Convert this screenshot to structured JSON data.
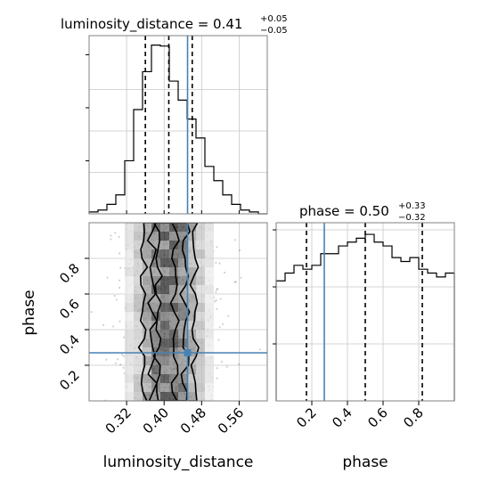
{
  "chart_data": {
    "type": "corner",
    "parameters": [
      "luminosity_distance",
      "phase"
    ],
    "colors": {
      "truth": "#4682b4",
      "histogram": "#000000",
      "quantile": "#000000",
      "grid": "#c8c8c8"
    },
    "panels": [
      {
        "id": "luminosity_distance_marginal",
        "type": "histogram",
        "title": {
          "main": "luminosity_distance = 0.41",
          "plus": "+0.05",
          "minus": "−0.05"
        },
        "xlim": [
          0.24,
          0.62
        ],
        "bin_edges": [
          0.24,
          0.259,
          0.278,
          0.297,
          0.316,
          0.335,
          0.354,
          0.373,
          0.392,
          0.411,
          0.43,
          0.449,
          0.468,
          0.487,
          0.506,
          0.525,
          0.544,
          0.563,
          0.582,
          0.601,
          0.62
        ],
        "counts": [
          2,
          4,
          10,
          20,
          56,
          110,
          150,
          178,
          177,
          140,
          120,
          100,
          80,
          50,
          35,
          20,
          10,
          4,
          2,
          0
        ],
        "quantiles": [
          0.36,
          0.41,
          0.46
        ],
        "truth": 0.45,
        "grid": true
      },
      {
        "id": "phase_marginal",
        "type": "histogram",
        "title": {
          "main": "phase = 0.50",
          "plus": "+0.33",
          "minus": "−0.32"
        },
        "xlim": [
          0.0,
          1.0
        ],
        "bin_edges": [
          0.0,
          0.05,
          0.1,
          0.15,
          0.2,
          0.25,
          0.3,
          0.35,
          0.4,
          0.45,
          0.5,
          0.55,
          0.6,
          0.65,
          0.7,
          0.75,
          0.8,
          0.85,
          0.9,
          0.95,
          1.0
        ],
        "counts": [
          155,
          165,
          175,
          170,
          175,
          190,
          190,
          200,
          205,
          210,
          215,
          205,
          200,
          185,
          180,
          185,
          170,
          165,
          160,
          165
        ],
        "quantiles": [
          0.17,
          0.5,
          0.82
        ],
        "truth": 0.27,
        "grid": true
      },
      {
        "id": "joint",
        "type": "2d_density",
        "xlabel": "luminosity_distance",
        "ylabel": "phase",
        "xlim": [
          0.24,
          0.62
        ],
        "ylim": [
          0.0,
          1.0
        ],
        "xticks": [
          0.32,
          0.4,
          0.48,
          0.56
        ],
        "yticks": [
          0.2,
          0.4,
          0.6,
          0.8
        ],
        "truth": [
          0.45,
          0.27
        ],
        "grid": true
      }
    ],
    "phase_xticks": [
      0.2,
      0.4,
      0.6,
      0.8
    ],
    "xtick_labels_lum": [
      "0.32",
      "0.40",
      "0.48",
      "0.56"
    ],
    "ytick_labels_phase": [
      "0.2",
      "0.4",
      "0.6",
      "0.8"
    ],
    "xtick_labels_phase": [
      "0.2",
      "0.4",
      "0.6",
      "0.8"
    ]
  }
}
